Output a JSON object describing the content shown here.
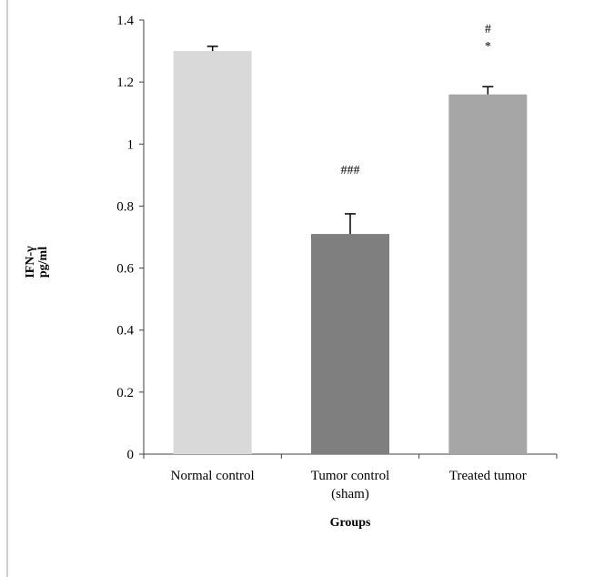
{
  "chart_data": {
    "type": "bar",
    "title": "",
    "xlabel": "Groups",
    "ylabel": [
      "IFN-γ",
      "pg/ml"
    ],
    "ylim": [
      0,
      1.4
    ],
    "yticks": [
      0,
      0.2,
      0.4,
      0.6,
      0.8,
      1,
      1.2,
      1.4
    ],
    "ytick_labels": [
      "0",
      "0.2",
      "0.4",
      "0.6",
      "0.8",
      "1",
      "1.2",
      "1.4"
    ],
    "categories": [
      [
        "Normal control"
      ],
      [
        "Tumor control",
        "(sham)"
      ],
      [
        "Treated tumor"
      ]
    ],
    "values": [
      1.3,
      0.71,
      1.16
    ],
    "errors": [
      0.015,
      0.065,
      0.025
    ],
    "annotations": [
      [],
      [
        "###"
      ],
      [
        "#",
        "*"
      ]
    ],
    "colors": [
      "#d9d9d9",
      "#7f7f7f",
      "#a6a6a6"
    ],
    "grid": false,
    "legend": "none"
  }
}
